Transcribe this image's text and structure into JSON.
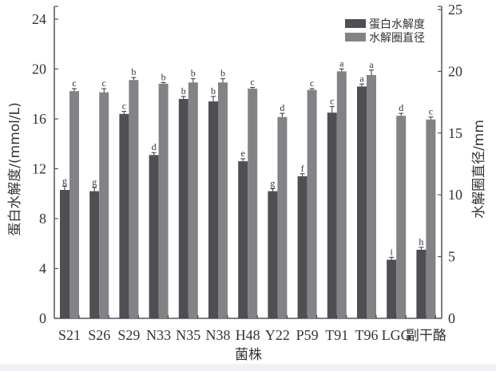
{
  "chart_data": {
    "type": "bar",
    "title": "",
    "xlabel": "菌株",
    "ylabel": "蛋白水解度/(mmol/L)",
    "ylabel_right": "水解圈直径/mm",
    "categories": [
      "S21",
      "S26",
      "S29",
      "N33",
      "N35",
      "N38",
      "H48",
      "Y22",
      "P59",
      "T91",
      "T96",
      "LGG",
      "副干酪"
    ],
    "series": [
      {
        "name": "蛋白水解度",
        "axis": "left",
        "color": "#4e4e53",
        "values": [
          10.3,
          10.2,
          16.4,
          13.1,
          17.6,
          17.4,
          12.6,
          10.2,
          11.4,
          16.5,
          18.6,
          4.7,
          5.5
        ],
        "errors": [
          0.3,
          0.3,
          0.2,
          0.2,
          0.2,
          0.4,
          0.2,
          0.2,
          0.2,
          0.5,
          0.2,
          0.2,
          0.2
        ],
        "letters": [
          "g",
          "g",
          "c",
          "d",
          "b",
          "b",
          "e",
          "g",
          "f",
          "c",
          "a",
          "i",
          "h"
        ]
      },
      {
        "name": "水解圈直径",
        "axis": "right",
        "color": "#838387",
        "values": [
          18.4,
          18.3,
          19.3,
          19.0,
          19.1,
          19.1,
          18.6,
          16.3,
          18.5,
          20.0,
          19.7,
          16.4,
          16.1
        ],
        "errors": [
          0.2,
          0.3,
          0.2,
          0.1,
          0.3,
          0.3,
          0.1,
          0.3,
          0.1,
          0.2,
          0.4,
          0.2,
          0.2
        ],
        "letters": [
          "c",
          "c",
          "b",
          "b",
          "b",
          "b",
          "c",
          "d",
          "c",
          "a",
          "a",
          "d",
          "c"
        ]
      }
    ],
    "ylim": [
      0,
      25
    ],
    "yticks_left": [
      0,
      4,
      8,
      12,
      16,
      20,
      24
    ],
    "ylim_right": [
      0,
      25
    ],
    "yticks_right": [
      0,
      5,
      10,
      15,
      20,
      25
    ],
    "grid": false,
    "legend_position": "upper right"
  },
  "legend": {
    "items": [
      {
        "label": "蛋白水解度",
        "color": "#4e4e53"
      },
      {
        "label": "水解圈直径",
        "color": "#838387"
      }
    ]
  },
  "axes": {
    "xlabel": "菌株",
    "ylabel_left": "蛋白水解度/(mmol/L)",
    "ylabel_right": "水解圈直径/mm"
  }
}
